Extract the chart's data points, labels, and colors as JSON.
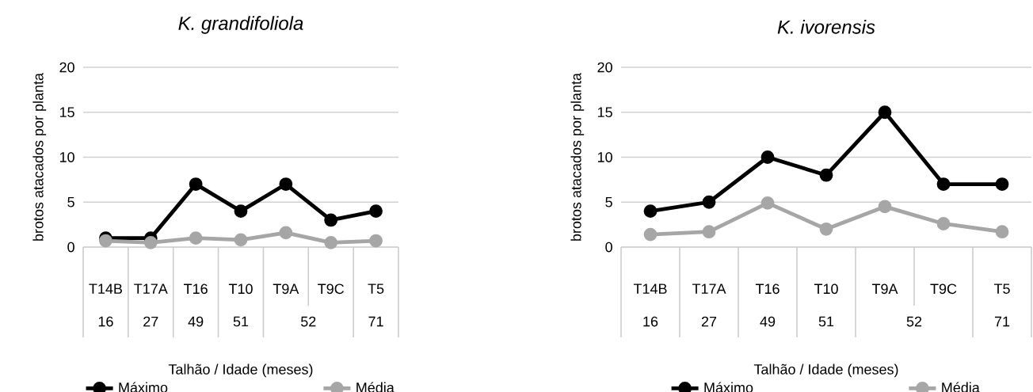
{
  "chart_data": [
    {
      "type": "line",
      "title": "K. grandifoliola",
      "ylabel": "brotos atacados por planta",
      "xlabel": "Talhão / Idade (meses)",
      "categories": [
        "T14B",
        "T17A",
        "T16",
        "T10",
        "T9A",
        "T9C",
        "T5"
      ],
      "annotations": [
        "16",
        "27",
        "49",
        "51",
        "52",
        "71"
      ],
      "series": [
        {
          "name": "Máximo",
          "color": "#000000",
          "values": [
            1,
            1,
            7,
            4,
            7,
            3,
            4
          ]
        },
        {
          "name": "Média",
          "color": "#a6a6a6",
          "values": [
            0.7,
            0.5,
            1.0,
            0.8,
            1.6,
            0.5,
            0.7
          ]
        }
      ],
      "ylim": [
        0,
        20
      ],
      "yticks": [
        0,
        5,
        10,
        15,
        20
      ],
      "grid": "y",
      "legend": "bottom",
      "marker": "circle"
    },
    {
      "type": "line",
      "title": "K. ivorensis",
      "ylabel": "brotos atacados por planta",
      "xlabel": "Talhão / Idade (meses)",
      "categories": [
        "T14B",
        "T17A",
        "T16",
        "T10",
        "T9A",
        "T9C",
        "T5"
      ],
      "annotations": [
        "16",
        "27",
        "49",
        "51",
        "52",
        "71"
      ],
      "series": [
        {
          "name": "Máximo",
          "color": "#000000",
          "values": [
            4,
            5,
            10,
            8,
            15,
            7,
            7
          ]
        },
        {
          "name": "Média",
          "color": "#a6a6a6",
          "values": [
            1.4,
            1.7,
            4.9,
            2.0,
            4.5,
            2.6,
            1.7
          ]
        }
      ],
      "ylim": [
        0,
        20
      ],
      "yticks": [
        0,
        5,
        10,
        15,
        20
      ],
      "grid": "y",
      "legend": "bottom",
      "marker": "circle"
    }
  ]
}
